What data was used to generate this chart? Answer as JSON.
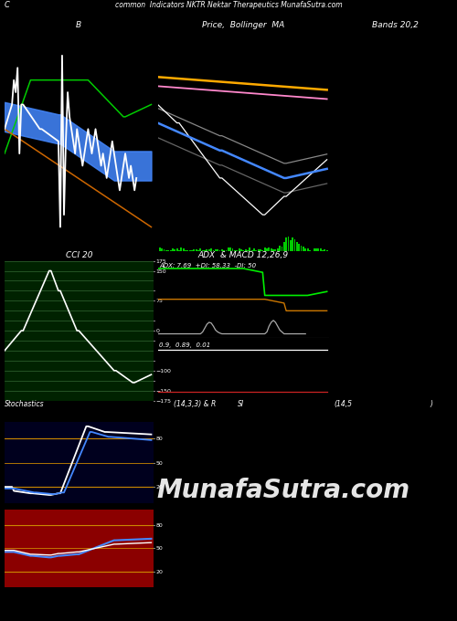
{
  "title_top": "common  Indicators NKTR Nektar Therapeutics MunafaSutra.com",
  "title_c": "C",
  "bg_main": "#000000",
  "bg_panel1": "#00001e",
  "bg_panel2": "#001400",
  "bg_panel_cci": "#002200",
  "bg_panel_adx": "#00001e",
  "bg_panel_stoch": "#00001e",
  "bg_panel_rsi": "#8b0000",
  "panel_titles": [
    "B",
    "Price,  Bollinger  MA",
    "Bands 20,2",
    "CCI 20",
    "ADX  & MACD 12,26,9",
    "Stochastics",
    "(14,3,3) & R",
    "SI",
    "(14,5",
    ")"
  ],
  "adx_label": "ADX: 7.69  +DI: 58.33  -DI: 50",
  "aroon_label": "0.9,  0.89,  0.01",
  "watermark": "MunafaSutra.com",
  "figsize": [
    5.0,
    6.8
  ],
  "dpi": 100
}
